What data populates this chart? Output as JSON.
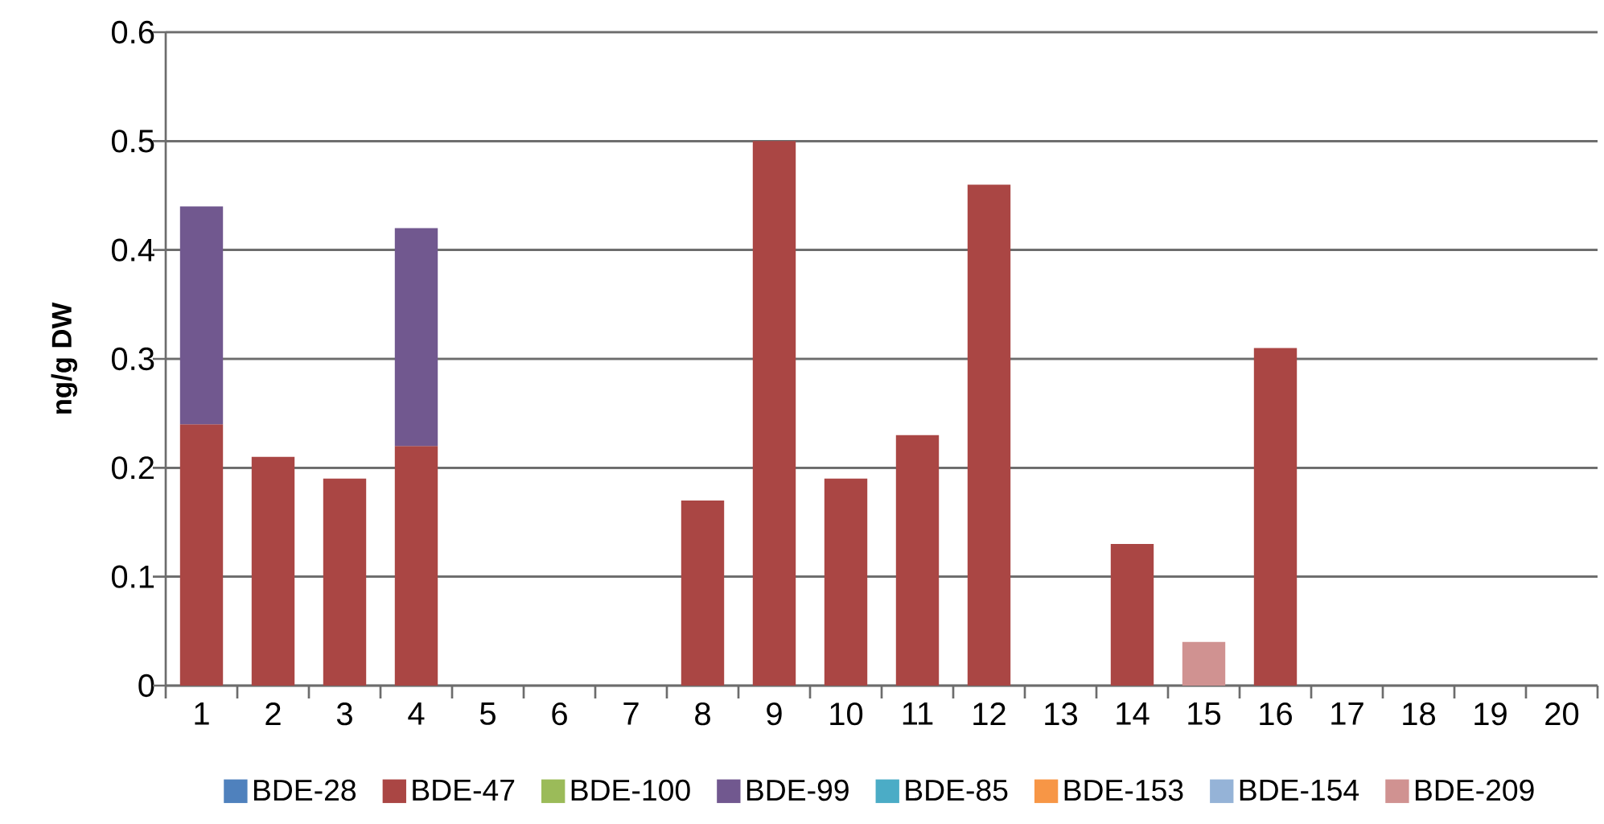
{
  "chart_data": {
    "type": "bar",
    "stacked": true,
    "ylabel": "ng/g DW",
    "categories": [
      "1",
      "2",
      "3",
      "4",
      "5",
      "6",
      "7",
      "8",
      "9",
      "10",
      "11",
      "12",
      "13",
      "14",
      "15",
      "16",
      "17",
      "18",
      "19",
      "20"
    ],
    "series": [
      {
        "name": "BDE-28",
        "color": "#4f81bd",
        "values": [
          null,
          null,
          null,
          null,
          null,
          null,
          null,
          null,
          null,
          null,
          null,
          null,
          null,
          null,
          null,
          null,
          null,
          null,
          null,
          null
        ]
      },
      {
        "name": "BDE-47",
        "color": "#aa4644",
        "values": [
          0.24,
          0.21,
          0.19,
          0.22,
          null,
          null,
          null,
          0.17,
          0.5,
          0.19,
          0.23,
          0.46,
          null,
          0.13,
          null,
          0.31,
          null,
          null,
          null,
          null
        ]
      },
      {
        "name": "BDE-100",
        "color": "#9bbb59",
        "values": [
          null,
          null,
          null,
          null,
          null,
          null,
          null,
          null,
          null,
          null,
          null,
          null,
          null,
          null,
          null,
          null,
          null,
          null,
          null,
          null
        ]
      },
      {
        "name": "BDE-99",
        "color": "#71588f",
        "values": [
          0.2,
          null,
          null,
          0.2,
          null,
          null,
          null,
          null,
          null,
          null,
          null,
          null,
          null,
          null,
          null,
          null,
          null,
          null,
          null,
          null
        ]
      },
      {
        "name": "BDE-85",
        "color": "#4bacc6",
        "values": [
          null,
          null,
          null,
          null,
          null,
          null,
          null,
          null,
          null,
          null,
          null,
          null,
          null,
          null,
          null,
          null,
          null,
          null,
          null,
          null
        ]
      },
      {
        "name": "BDE-153",
        "color": "#f79646",
        "values": [
          null,
          null,
          null,
          null,
          null,
          null,
          null,
          null,
          null,
          null,
          null,
          null,
          null,
          null,
          null,
          null,
          null,
          null,
          null,
          null
        ]
      },
      {
        "name": "BDE-154",
        "color": "#95b3d7",
        "values": [
          null,
          null,
          null,
          null,
          null,
          null,
          null,
          null,
          null,
          null,
          null,
          null,
          null,
          null,
          null,
          null,
          null,
          null,
          null,
          null
        ]
      },
      {
        "name": "BDE-209",
        "color": "#d09291",
        "values": [
          null,
          null,
          null,
          null,
          null,
          null,
          null,
          null,
          null,
          null,
          null,
          null,
          null,
          null,
          0.04,
          null,
          null,
          null,
          null,
          null
        ]
      }
    ],
    "ylim": [
      0,
      0.6
    ],
    "yticks": [
      0,
      0.1,
      0.2,
      0.3,
      0.4,
      0.5,
      0.6
    ],
    "grid": "y",
    "legend": "bottom"
  }
}
